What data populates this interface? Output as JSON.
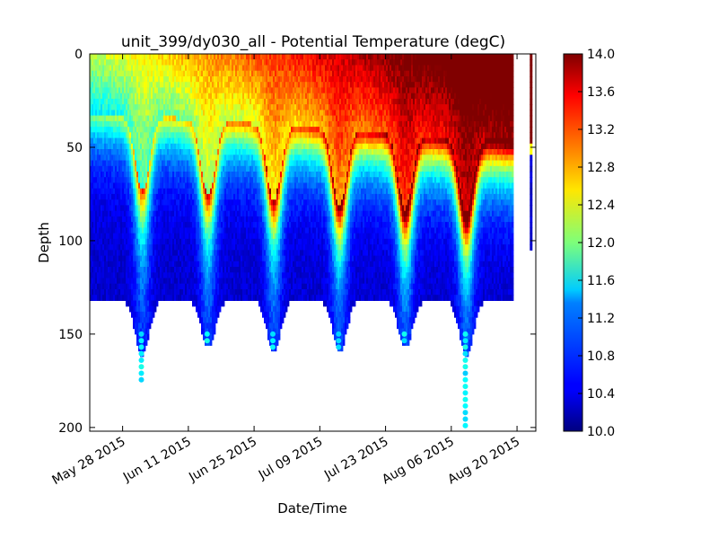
{
  "chart_data": {
    "type": "heatmap",
    "title": "unit_399/dy030_all - Potential Temperature (degC)",
    "xlabel": "Date/Time",
    "ylabel": "Depth",
    "x_range": [
      "2015-05-21",
      "2015-08-24"
    ],
    "ylim": [
      0,
      202
    ],
    "y_inverted": true,
    "x_ticks": [
      "May 28 2015",
      "Jun 11 2015",
      "Jun 25 2015",
      "Jul 09 2015",
      "Jul 23 2015",
      "Aug 06 2015",
      "Aug 20 2015"
    ],
    "x_tick_dates": [
      "2015-05-28",
      "2015-06-11",
      "2015-06-25",
      "2015-07-09",
      "2015-07-23",
      "2015-08-06",
      "2015-08-20"
    ],
    "y_ticks": [
      0,
      50,
      100,
      150,
      200
    ],
    "colorbar": {
      "colormap": "jet",
      "min": 10.0,
      "max": 14.0,
      "ticks": [
        "10.0",
        "10.4",
        "10.8",
        "11.2",
        "11.6",
        "12.0",
        "12.4",
        "12.8",
        "13.2",
        "13.6",
        "14.0"
      ]
    },
    "dives": [
      {
        "date": "2015-06-01",
        "max_depth": 175
      },
      {
        "date": "2015-06-15",
        "max_depth": 156
      },
      {
        "date": "2015-06-29",
        "max_depth": 157
      },
      {
        "date": "2015-07-13",
        "max_depth": 158
      },
      {
        "date": "2015-07-27",
        "max_depth": 156
      },
      {
        "date": "2015-08-09",
        "max_depth": 200
      }
    ],
    "shallow_profile_depth": 125,
    "data_end": "2015-08-19",
    "late_profile": {
      "date": "2015-08-23",
      "max_depth": 103
    }
  }
}
